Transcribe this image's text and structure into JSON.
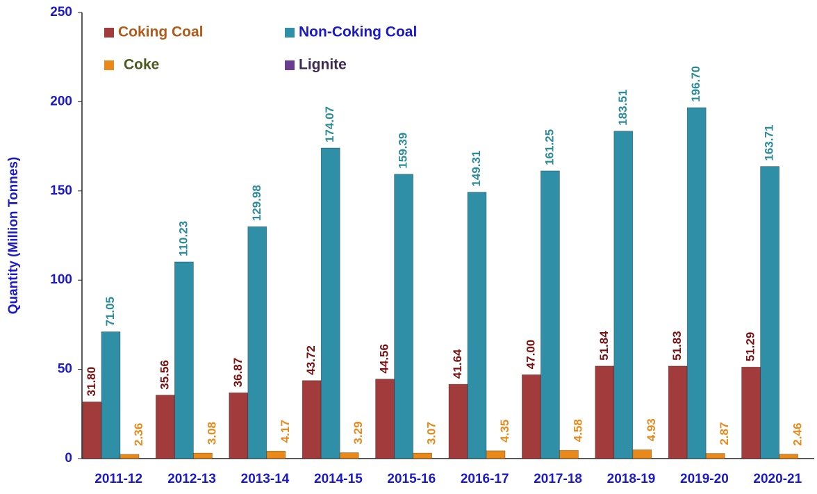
{
  "chart_data": {
    "type": "bar",
    "y_label": "Quantity (Million Tonnes)",
    "categories": [
      "2011-12",
      "2012-13",
      "2013-14",
      "2014-15",
      "2015-16",
      "2016-17",
      "2017-18",
      "2018-19",
      "2019-20",
      "2020-21"
    ],
    "series": [
      {
        "name": "Coking Coal",
        "color": "#a23b3b",
        "label_color": "#7a1010",
        "legend_color": "#b35a1a",
        "values": [
          31.8,
          35.56,
          36.87,
          43.72,
          44.56,
          41.64,
          47.0,
          51.84,
          51.83,
          51.29
        ],
        "value_labels": [
          "31.80",
          "35.56",
          "36.87",
          "43.72",
          "44.56",
          "41.64",
          "47.00",
          "51.84",
          "51.83",
          "51.29"
        ]
      },
      {
        "name": "Non-Coking Coal",
        "color": "#2f8fa6",
        "label_color": "#2a8c99",
        "legend_color": "#1a1acc",
        "values": [
          71.05,
          110.23,
          129.98,
          174.07,
          159.39,
          149.31,
          161.25,
          183.51,
          196.7,
          163.71
        ],
        "value_labels": [
          "71.05",
          "110.23",
          "129.98",
          "174.07",
          "159.39",
          "149.31",
          "161.25",
          "183.51",
          "196.70",
          "163.71"
        ]
      },
      {
        "name": "Coke",
        "color": "#e8891a",
        "label_color": "#e8891a",
        "legend_color": "#4a5a1e",
        "values": [
          2.36,
          3.08,
          4.17,
          3.29,
          3.07,
          4.35,
          4.58,
          4.93,
          2.87,
          2.46
        ],
        "value_labels": [
          "2.36",
          "3.08",
          "4.17",
          "3.29",
          "3.07",
          "4.35",
          "4.58",
          "4.93",
          "2.87",
          "2.46"
        ]
      },
      {
        "name": "Lignite",
        "color": "#6a3d8f",
        "label_color": "#6a3d8f",
        "legend_color": "#3d2a55",
        "values": [
          0,
          0,
          0,
          0,
          0,
          0,
          0,
          0,
          0,
          0
        ]
      }
    ],
    "ylim": [
      0,
      250
    ],
    "yticks": [
      0,
      50,
      100,
      150,
      200,
      250
    ],
    "grid": false
  }
}
